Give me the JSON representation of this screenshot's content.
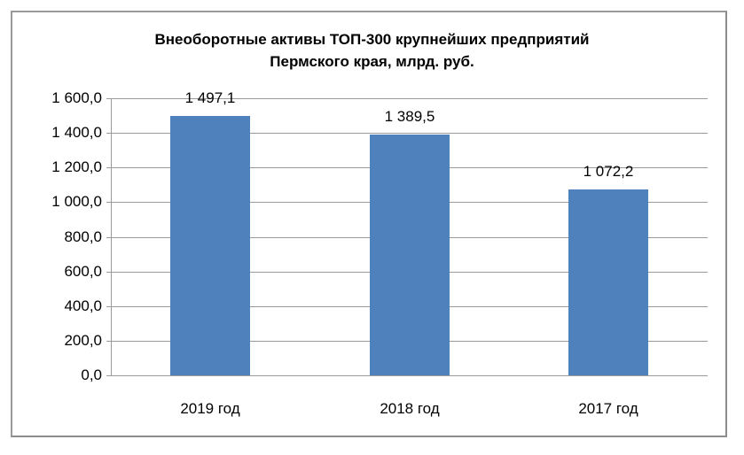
{
  "chart_data": {
    "type": "bar",
    "title": "Внеоборотные активы ТОП-300 крупнейших предприятий Пермского края, млрд. руб.",
    "title_lines": [
      "Внеоборотные активы ТОП-300 крупнейших предприятий",
      "Пермского края, млрд. руб."
    ],
    "categories": [
      "2019 год",
      "2018 год",
      "2017 год"
    ],
    "values": [
      1497.1,
      1389.5,
      1072.2
    ],
    "value_labels": [
      "1 497,1",
      "1 389,5",
      "1 072,2"
    ],
    "xlabel": "",
    "ylabel": "",
    "ylim": [
      0,
      1600
    ],
    "yticks": [
      0,
      200,
      400,
      600,
      800,
      1000,
      1200,
      1400,
      1600
    ],
    "ytick_labels": [
      "0,0",
      "200,0",
      "400,0",
      "600,0",
      "800,0",
      "1 000,0",
      "1 200,0",
      "1 400,0",
      "1 600,0"
    ],
    "grid": true,
    "legend": "none",
    "bar_color": "#4f81bd"
  }
}
